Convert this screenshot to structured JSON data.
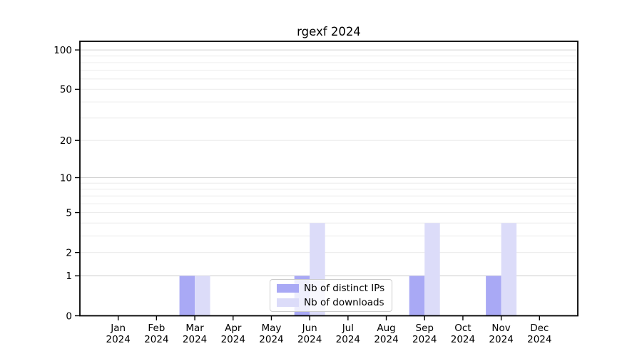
{
  "chart_data": {
    "type": "bar",
    "title": "rgexf 2024",
    "yscale": "log1p",
    "categories": [
      "Jan",
      "Feb",
      "Mar",
      "Apr",
      "May",
      "Jun",
      "Jul",
      "Aug",
      "Sep",
      "Oct",
      "Nov",
      "Dec"
    ],
    "category_year": "2024",
    "series": [
      {
        "name": "Nb of distinct IPs",
        "color": "#a9a9f5",
        "values": [
          0,
          0,
          1,
          0,
          0,
          1,
          0,
          0,
          1,
          0,
          1,
          0
        ]
      },
      {
        "name": "Nb of downloads",
        "color": "#dcdcf9",
        "values": [
          0,
          0,
          1,
          0,
          0,
          4,
          0,
          0,
          4,
          0,
          4,
          0
        ]
      }
    ],
    "yticks": [
      0,
      1,
      2,
      5,
      10,
      20,
      50,
      100
    ],
    "ylim": [
      0,
      116
    ],
    "grid_major": [
      1,
      10,
      100
    ],
    "grid_minor": [
      2,
      3,
      4,
      5,
      6,
      7,
      8,
      9,
      20,
      30,
      40,
      50,
      60,
      70,
      80,
      90
    ],
    "legend_position": "lower center",
    "colors": {
      "grid_major": "#d0d0d0",
      "grid_minor": "#ececec",
      "axis": "#000000",
      "text": "#000000",
      "legend_border": "#cccccc",
      "background": "#ffffff"
    }
  }
}
